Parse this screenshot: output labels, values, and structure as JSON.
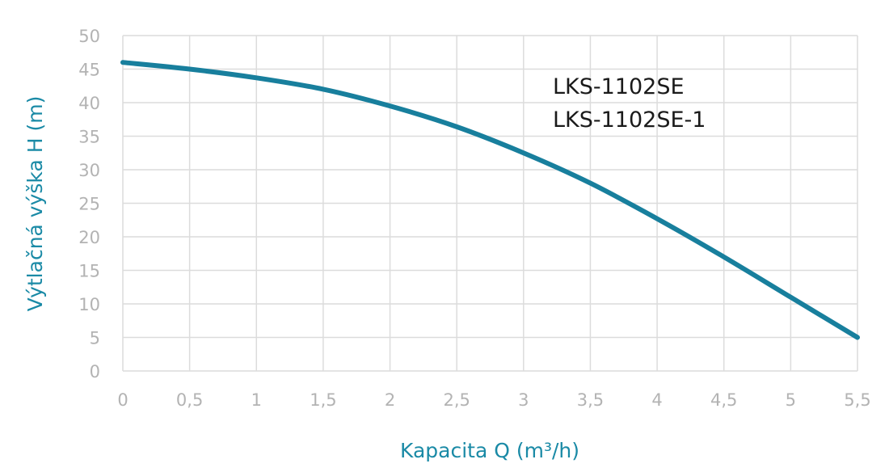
{
  "colors": {
    "series": "#187f9d",
    "axis_title": "#1a8aa6",
    "tick": "#b3b3b3",
    "grid": "#dcdcdc"
  },
  "chart_data": {
    "type": "line",
    "title": "",
    "xlabel": "Kapacita Q (m³/h)",
    "ylabel": "Výtlačná výška H (m)",
    "xlim": [
      0,
      5.5
    ],
    "ylim": [
      0,
      50
    ],
    "grid": true,
    "x_ticks": [
      "0",
      "0,5",
      "1",
      "1,5",
      "2",
      "2,5",
      "3",
      "3,5",
      "4",
      "4,5",
      "5",
      "5,5"
    ],
    "y_ticks": [
      "0",
      "5",
      "10",
      "15",
      "20",
      "25",
      "30",
      "35",
      "40",
      "45",
      "50"
    ],
    "annotations": [
      "LKS-1102SE",
      "LKS-1102SE-1"
    ],
    "series": [
      {
        "x": [
          0,
          0.5,
          1,
          1.5,
          2,
          2.5,
          3,
          3.5,
          4,
          4.5,
          5,
          5.5
        ],
        "y": [
          46,
          45,
          43.7,
          42,
          39.5,
          36.4,
          32.5,
          28,
          22.7,
          17,
          11,
          5
        ]
      }
    ]
  }
}
